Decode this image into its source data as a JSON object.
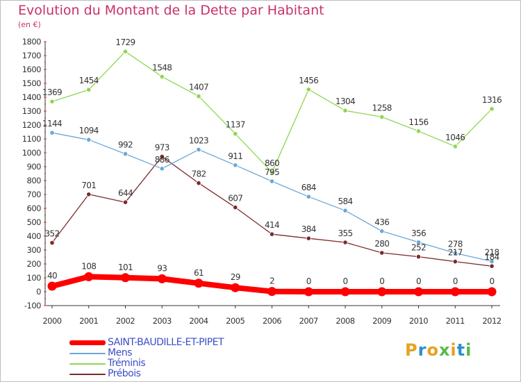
{
  "title": "Evolution du Montant de la Dette par Habitant",
  "subtitle": "(en €)",
  "logo": {
    "text": "Proxiti",
    "letters": [
      "P",
      "r",
      "o",
      "x",
      "i",
      "t",
      "i"
    ],
    "colors": [
      "#e8a020",
      "#2a8fd0",
      "#e8a020",
      "#59b947",
      "#e8a020",
      "#2a8fd0",
      "#59b947"
    ]
  },
  "chart_data": {
    "type": "line",
    "x": [
      "2000",
      "2001",
      "2002",
      "2003",
      "2004",
      "2005",
      "2006",
      "2007",
      "2008",
      "2009",
      "2010",
      "2011",
      "2012"
    ],
    "ylim": [
      -100,
      1800
    ],
    "yticks": [
      -100,
      0,
      100,
      200,
      300,
      400,
      500,
      600,
      700,
      800,
      900,
      1000,
      1100,
      1200,
      1300,
      1400,
      1500,
      1600,
      1700,
      1800
    ],
    "grid": false,
    "legend_position": "bottom-left",
    "series": [
      {
        "name": "SAINT-BAUDILLE-ET-PIPET",
        "color": "#ff0000",
        "values": [
          40,
          108,
          101,
          93,
          61,
          29,
          2,
          0,
          0,
          0,
          0,
          0,
          0
        ],
        "labels": [
          "40",
          "108",
          "101",
          "93",
          "61",
          "29",
          "2",
          "0",
          "0",
          "0",
          "0",
          "0",
          "0"
        ]
      },
      {
        "name": "Mens",
        "color": "#6aa7d8",
        "values": [
          1144,
          1094,
          992,
          886,
          1023,
          911,
          795,
          684,
          584,
          436,
          356,
          278,
          218
        ],
        "labels": [
          "1144",
          "1094",
          "992",
          "886",
          "1023",
          "911",
          "795",
          "684",
          "584",
          "436",
          "356",
          "278",
          "218"
        ]
      },
      {
        "name": "Tréminis",
        "color": "#8fd64f",
        "values": [
          1369,
          1454,
          1729,
          1548,
          1407,
          1137,
          860,
          1456,
          1304,
          1258,
          1156,
          1046,
          1316
        ],
        "labels": [
          "1369",
          "1454",
          "1729",
          "1548",
          "1407",
          "1137",
          "860",
          "1456",
          "1304",
          "1258",
          "1156",
          "1046",
          "1316"
        ]
      },
      {
        "name": "Prébois",
        "color": "#7b2a2a",
        "values": [
          352,
          701,
          644,
          973,
          782,
          607,
          414,
          384,
          355,
          280,
          252,
          217,
          184
        ],
        "labels": [
          "352",
          "701",
          "644",
          "973",
          "782",
          "607",
          "414",
          "384",
          "355",
          "280",
          "252",
          "217",
          "184"
        ]
      }
    ]
  }
}
